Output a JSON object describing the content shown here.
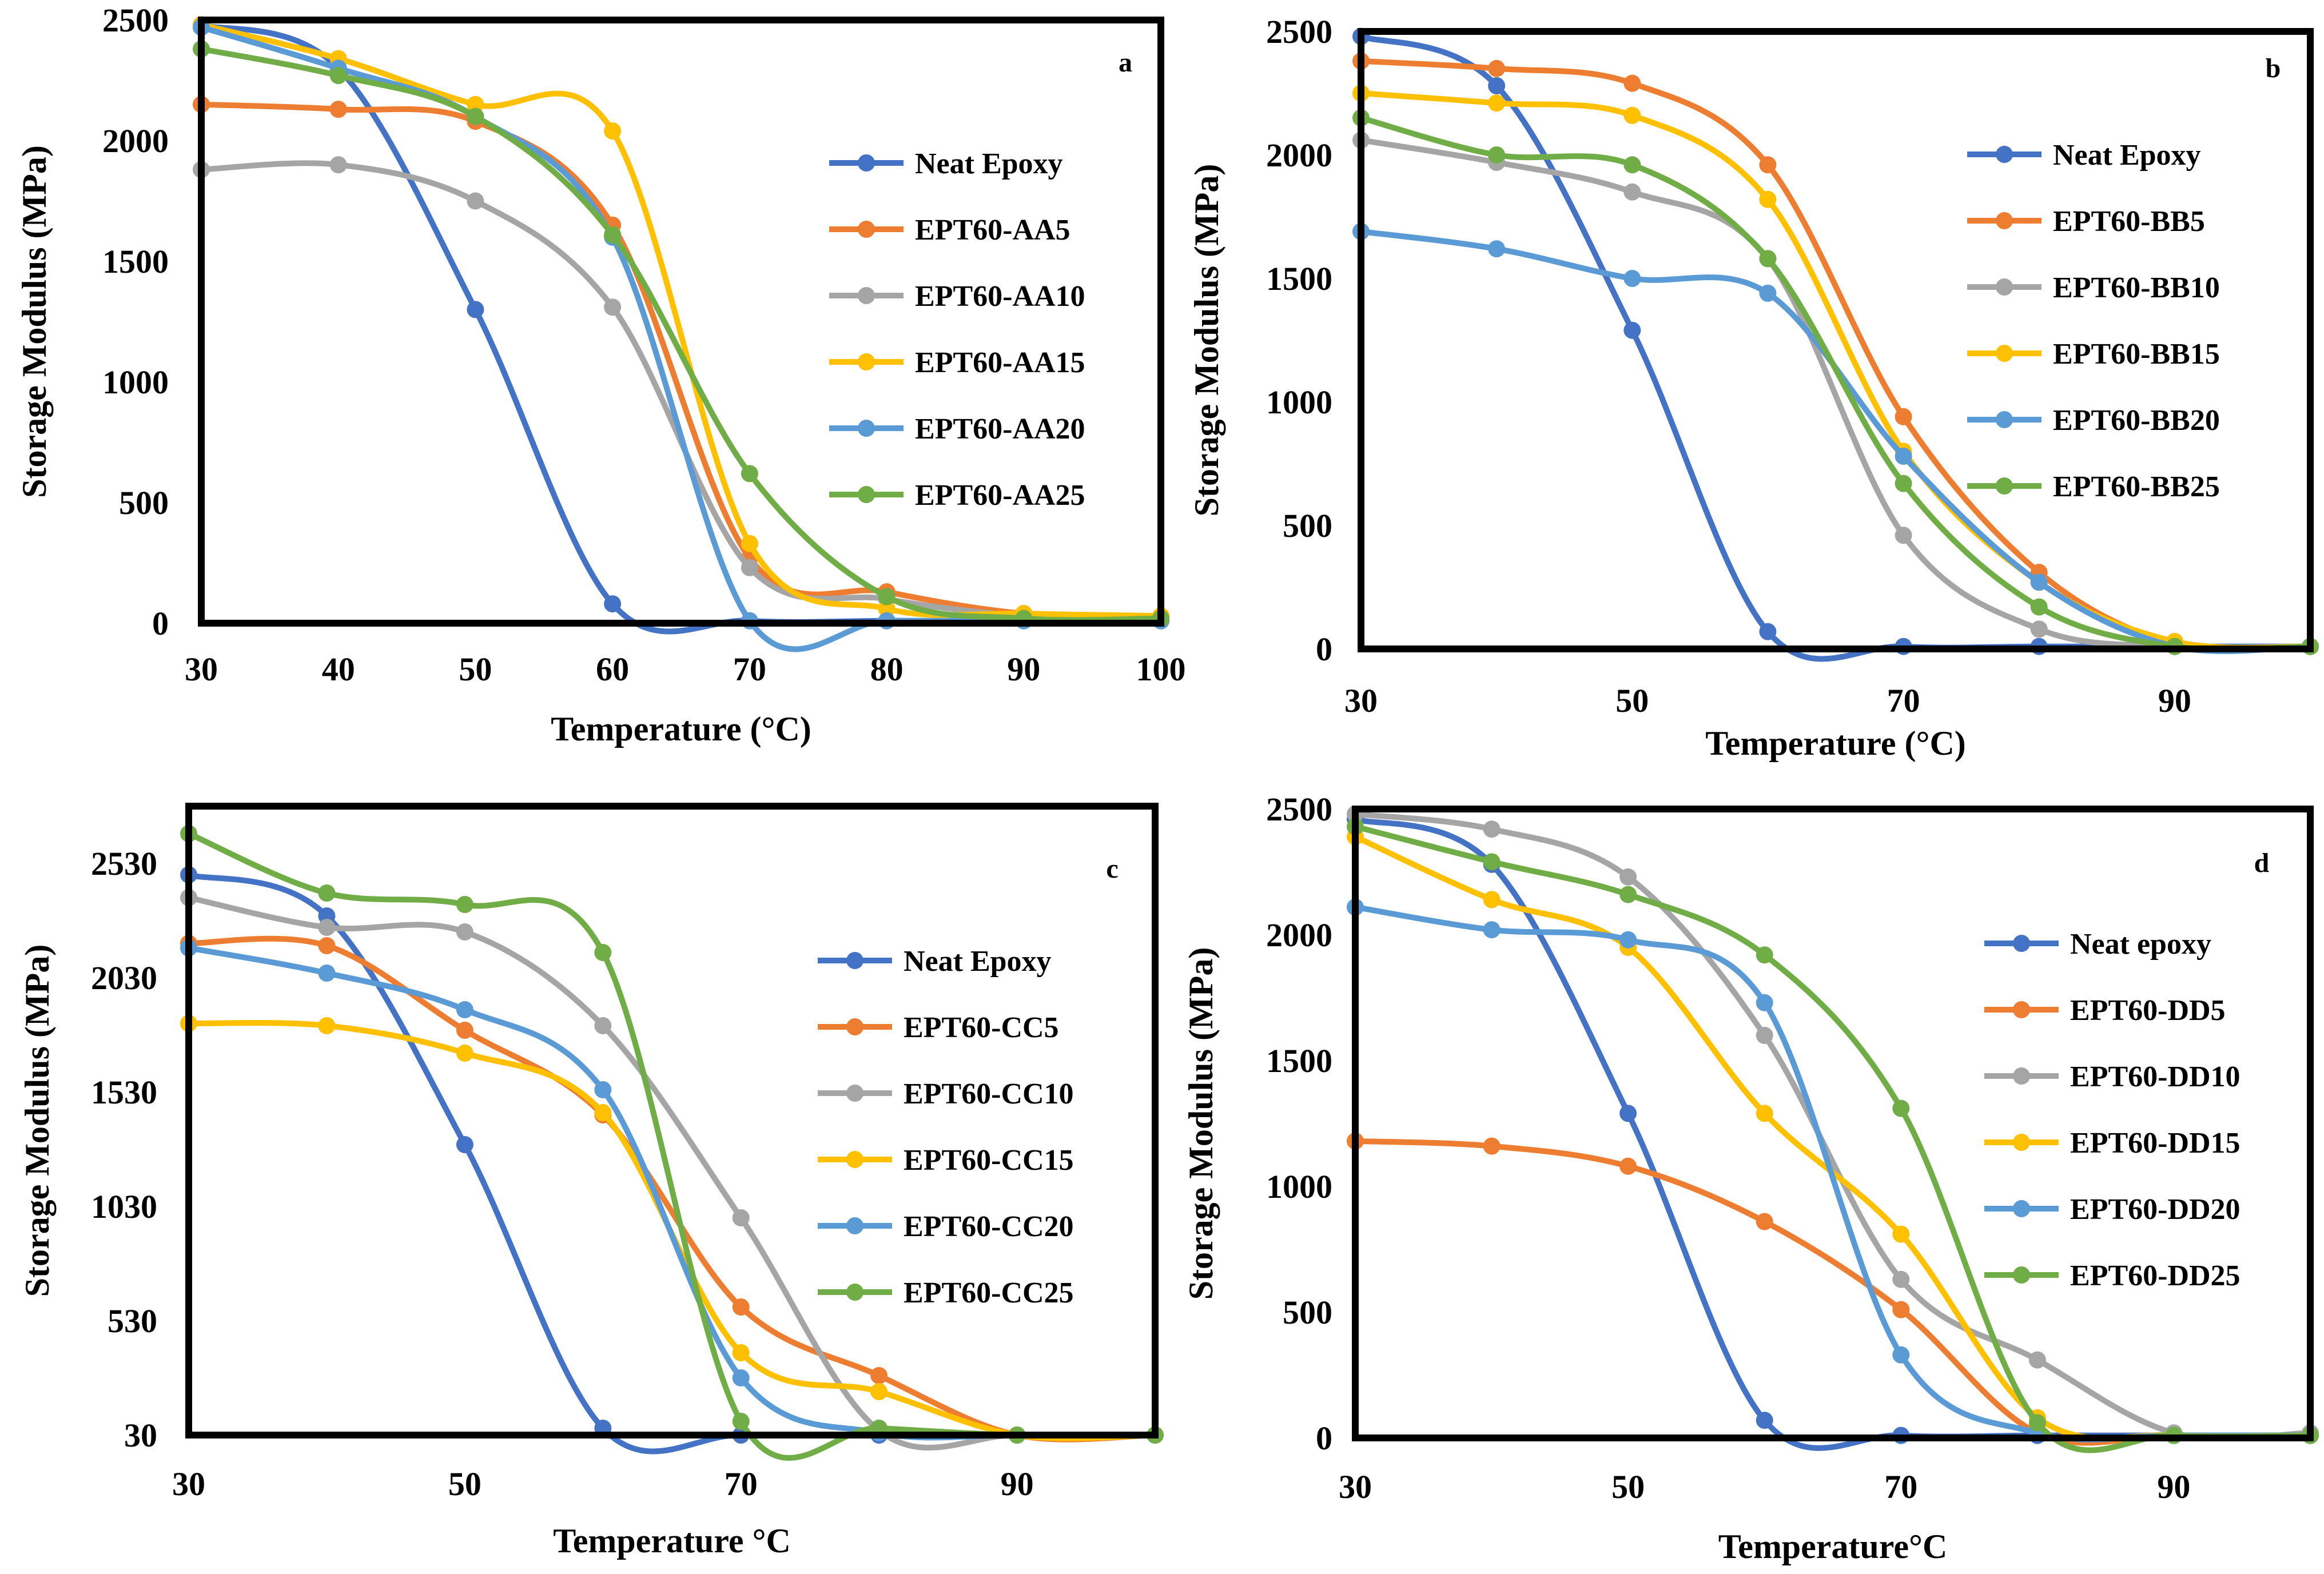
{
  "colors": {
    "Neat": "#4472C4",
    "S5": "#ED7D31",
    "S10": "#A5A5A5",
    "S15": "#FFC000",
    "S20": "#5B9BD5",
    "S25": "#70AD47"
  },
  "chart_data": [
    {
      "type": "line",
      "panel": "a",
      "title": "",
      "xlabel": "Temperature (°C)",
      "ylabel": "Storage Modulus (MPa)",
      "xlim": [
        30,
        100
      ],
      "ylim": [
        0,
        2500
      ],
      "xticks": [
        30,
        40,
        50,
        60,
        70,
        80,
        90,
        100
      ],
      "yticks": [
        0,
        500,
        1000,
        1500,
        2000,
        2500
      ],
      "legend_position": "right",
      "series": [
        {
          "name": "Neat Epoxy",
          "color_key": "Neat",
          "x": [
            30,
            40,
            50,
            60,
            70,
            80,
            90,
            100
          ],
          "y": [
            2480,
            2300,
            1300,
            80,
            10,
            10,
            10,
            10
          ]
        },
        {
          "name": "EPT60-AA5",
          "color_key": "S5",
          "x": [
            30,
            40,
            50,
            60,
            70,
            80,
            90,
            100
          ],
          "y": [
            2150,
            2130,
            2080,
            1650,
            270,
            130,
            40,
            30
          ]
        },
        {
          "name": "EPT60-AA10",
          "color_key": "S10",
          "x": [
            30,
            40,
            50,
            60,
            70,
            80,
            90,
            100
          ],
          "y": [
            1880,
            1900,
            1750,
            1310,
            230,
            100,
            30,
            20
          ]
        },
        {
          "name": "EPT60-AA15",
          "color_key": "S15",
          "x": [
            30,
            40,
            50,
            60,
            70,
            80,
            90,
            100
          ],
          "y": [
            2480,
            2340,
            2150,
            2040,
            330,
            60,
            40,
            30
          ]
        },
        {
          "name": "EPT60-AA20",
          "color_key": "S20",
          "x": [
            30,
            40,
            50,
            60,
            70,
            80,
            90,
            100
          ],
          "y": [
            2470,
            2300,
            2100,
            1600,
            10,
            10,
            10,
            10
          ]
        },
        {
          "name": "EPT60-AA25",
          "color_key": "S25",
          "x": [
            30,
            40,
            50,
            60,
            70,
            80,
            90,
            100
          ],
          "y": [
            2380,
            2270,
            2100,
            1610,
            620,
            110,
            20,
            20
          ]
        }
      ]
    },
    {
      "type": "line",
      "panel": "b",
      "title": "",
      "xlabel": "Temperature (°C)",
      "ylabel": "Storage Modulus (MPa)",
      "xlim": [
        30,
        100
      ],
      "ylim": [
        0,
        2500
      ],
      "xticks": [
        30,
        50,
        70,
        90
      ],
      "yticks": [
        0,
        500,
        1000,
        1500,
        2000,
        2500
      ],
      "legend_position": "right",
      "series": [
        {
          "name": "Neat Epoxy",
          "color_key": "Neat",
          "x": [
            30,
            40,
            50,
            60,
            70,
            80,
            90,
            100
          ],
          "y": [
            2480,
            2280,
            1290,
            70,
            10,
            10,
            10,
            10
          ]
        },
        {
          "name": "EPT60-BB5",
          "color_key": "S5",
          "x": [
            30,
            40,
            50,
            60,
            70,
            80,
            90,
            100
          ],
          "y": [
            2380,
            2350,
            2290,
            1960,
            940,
            310,
            20,
            10
          ]
        },
        {
          "name": "EPT60-BB10",
          "color_key": "S10",
          "x": [
            30,
            40,
            50,
            60,
            70,
            80,
            90,
            100
          ],
          "y": [
            2060,
            1970,
            1850,
            1580,
            460,
            80,
            10,
            10
          ]
        },
        {
          "name": "EPT60-BB15",
          "color_key": "S15",
          "x": [
            30,
            40,
            50,
            60,
            70,
            80,
            90,
            100
          ],
          "y": [
            2250,
            2210,
            2160,
            1820,
            800,
            270,
            30,
            10
          ]
        },
        {
          "name": "EPT60-BB20",
          "color_key": "S20",
          "x": [
            30,
            40,
            50,
            60,
            70,
            80,
            90,
            100
          ],
          "y": [
            1690,
            1620,
            1500,
            1440,
            780,
            270,
            10,
            10
          ]
        },
        {
          "name": "EPT60-BB25",
          "color_key": "S25",
          "x": [
            30,
            40,
            50,
            60,
            70,
            80,
            90,
            100
          ],
          "y": [
            2150,
            2000,
            1960,
            1580,
            670,
            170,
            10,
            10
          ]
        }
      ]
    },
    {
      "type": "line",
      "panel": "c",
      "title": "",
      "xlabel": "Temperature °C",
      "ylabel": "Storage Modulus (MPa)",
      "xlim": [
        30,
        100
      ],
      "ylim": [
        30,
        2780
      ],
      "xticks": [
        30,
        50,
        70,
        90
      ],
      "yticks": [
        30,
        530,
        1030,
        1530,
        2030,
        2530
      ],
      "legend_position": "right",
      "series": [
        {
          "name": "Neat Epoxy",
          "color_key": "Neat",
          "x": [
            30,
            40,
            50,
            60,
            70,
            80,
            90,
            100
          ],
          "y": [
            2480,
            2300,
            1300,
            60,
            30,
            30,
            30,
            30
          ]
        },
        {
          "name": "EPT60-CC5",
          "color_key": "S5",
          "x": [
            30,
            40,
            50,
            60,
            70,
            80,
            90,
            100
          ],
          "y": [
            2180,
            2170,
            1800,
            1430,
            590,
            290,
            30,
            30
          ]
        },
        {
          "name": "EPT60-CC10",
          "color_key": "S10",
          "x": [
            30,
            40,
            50,
            60,
            70,
            80,
            90,
            100
          ],
          "y": [
            2380,
            2250,
            2230,
            1820,
            980,
            50,
            30,
            30
          ]
        },
        {
          "name": "EPT60-CC15",
          "color_key": "S15",
          "x": [
            30,
            40,
            50,
            60,
            70,
            80,
            90,
            100
          ],
          "y": [
            1830,
            1820,
            1700,
            1440,
            390,
            220,
            30,
            30
          ]
        },
        {
          "name": "EPT60-CC20",
          "color_key": "S20",
          "x": [
            30,
            40,
            50,
            60,
            70,
            80,
            90,
            100
          ],
          "y": [
            2160,
            2050,
            1890,
            1540,
            280,
            40,
            30,
            30
          ]
        },
        {
          "name": "EPT60-CC25",
          "color_key": "S25",
          "x": [
            30,
            40,
            50,
            60,
            70,
            80,
            90,
            100
          ],
          "y": [
            2660,
            2400,
            2350,
            2140,
            90,
            60,
            30,
            30
          ]
        }
      ]
    },
    {
      "type": "line",
      "panel": "d",
      "title": "",
      "xlabel": "Temperature°C",
      "ylabel": "Storage Modulus (MPa)",
      "xlim": [
        30,
        100
      ],
      "ylim": [
        0,
        2500
      ],
      "xticks": [
        30,
        50,
        70,
        90
      ],
      "yticks": [
        0,
        500,
        1000,
        1500,
        2000,
        2500
      ],
      "legend_position": "right",
      "series": [
        {
          "name": "Neat epoxy",
          "color_key": "Neat",
          "x": [
            30,
            40,
            50,
            60,
            70,
            80,
            90,
            100
          ],
          "y": [
            2460,
            2280,
            1290,
            70,
            10,
            10,
            10,
            10
          ]
        },
        {
          "name": "EPT60-DD5",
          "color_key": "S5",
          "x": [
            30,
            40,
            50,
            60,
            70,
            80,
            90,
            100
          ],
          "y": [
            1180,
            1160,
            1080,
            860,
            510,
            20,
            10,
            10
          ]
        },
        {
          "name": "EPT60-DD10",
          "color_key": "S10",
          "x": [
            30,
            40,
            50,
            60,
            70,
            80,
            90,
            100
          ],
          "y": [
            2480,
            2420,
            2230,
            1600,
            630,
            310,
            20,
            20
          ]
        },
        {
          "name": "EPT60-DD15",
          "color_key": "S15",
          "x": [
            30,
            40,
            50,
            60,
            70,
            80,
            90,
            100
          ],
          "y": [
            2390,
            2140,
            1950,
            1290,
            810,
            80,
            10,
            10
          ]
        },
        {
          "name": "EPT60-DD20",
          "color_key": "S20",
          "x": [
            30,
            40,
            50,
            60,
            70,
            80,
            90,
            100
          ],
          "y": [
            2110,
            2020,
            1980,
            1730,
            330,
            20,
            10,
            10
          ]
        },
        {
          "name": "EPT60-DD25",
          "color_key": "S25",
          "x": [
            30,
            40,
            50,
            60,
            70,
            80,
            90,
            100
          ],
          "y": [
            2430,
            2290,
            2160,
            1920,
            1310,
            60,
            10,
            10
          ]
        }
      ]
    }
  ]
}
